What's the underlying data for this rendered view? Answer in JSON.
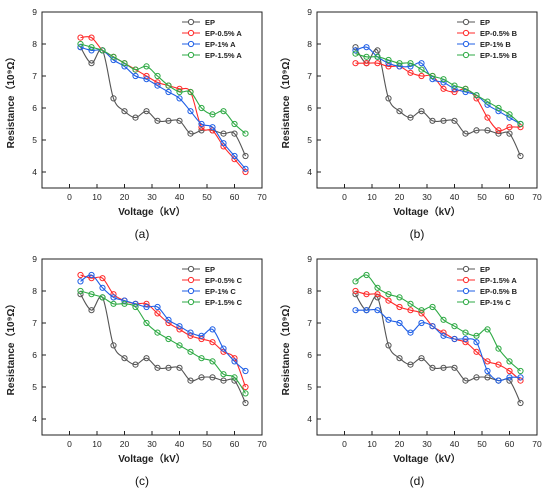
{
  "chart_data": [
    {
      "type": "line",
      "panel_label": "(a)",
      "xlabel": "Voltage（kV）",
      "ylabel": "Resistance（10⁹Ω）",
      "xlim": [
        -10,
        70
      ],
      "ylim": [
        3.5,
        9
      ],
      "xticks": [
        "0",
        "10",
        "20",
        "30",
        "40",
        "50",
        "60",
        "70"
      ],
      "yticks": [
        "4",
        "5",
        "6",
        "7",
        "8",
        "9"
      ],
      "legend_position": "top-right",
      "series": [
        {
          "name": "EP",
          "color": "#555555",
          "x": [
            4,
            8,
            12,
            16,
            20,
            24,
            28,
            32,
            36,
            40,
            44,
            48,
            52,
            56,
            60,
            64
          ],
          "y": [
            7.9,
            7.4,
            7.8,
            6.3,
            5.9,
            5.7,
            5.9,
            5.6,
            5.6,
            5.6,
            5.2,
            5.3,
            5.3,
            5.2,
            5.2,
            4.5
          ]
        },
        {
          "name": "EP-0.5% A",
          "color": "#ff2a2a",
          "x": [
            4,
            8,
            12,
            16,
            20,
            24,
            28,
            32,
            36,
            40,
            44,
            48,
            52,
            56,
            60,
            64
          ],
          "y": [
            8.2,
            8.2,
            7.8,
            7.6,
            7.4,
            7.2,
            7.0,
            6.8,
            6.7,
            6.6,
            6.5,
            5.4,
            5.3,
            4.8,
            4.4,
            4.0
          ]
        },
        {
          "name": "EP-1%   A",
          "color": "#1f5fe6",
          "x": [
            4,
            8,
            12,
            16,
            20,
            24,
            28,
            32,
            36,
            40,
            44,
            48,
            52,
            56,
            60,
            64
          ],
          "y": [
            7.9,
            7.8,
            7.8,
            7.5,
            7.3,
            7.0,
            6.9,
            6.7,
            6.5,
            6.3,
            5.9,
            5.5,
            5.4,
            4.9,
            4.5,
            4.1
          ]
        },
        {
          "name": "EP-1.5% A",
          "color": "#2eaa44",
          "x": [
            4,
            8,
            12,
            16,
            20,
            24,
            28,
            32,
            36,
            40,
            44,
            48,
            52,
            56,
            60,
            64
          ],
          "y": [
            8.0,
            7.9,
            7.8,
            7.6,
            7.4,
            7.2,
            7.3,
            7.0,
            6.7,
            6.5,
            6.5,
            6.0,
            5.8,
            5.9,
            5.5,
            5.2
          ]
        }
      ]
    },
    {
      "type": "line",
      "panel_label": "(b)",
      "xlabel": "Voltage（kV）",
      "ylabel": "Resistance（10⁹Ω）",
      "xlim": [
        -10,
        70
      ],
      "ylim": [
        3.5,
        9
      ],
      "xticks": [
        "0",
        "10",
        "20",
        "30",
        "40",
        "50",
        "60",
        "70"
      ],
      "yticks": [
        "4",
        "5",
        "6",
        "7",
        "8",
        "9"
      ],
      "legend_position": "top-right",
      "series": [
        {
          "name": "EP",
          "color": "#555555",
          "x": [
            4,
            8,
            12,
            16,
            20,
            24,
            28,
            32,
            36,
            40,
            44,
            48,
            52,
            56,
            60,
            64
          ],
          "y": [
            7.9,
            7.4,
            7.8,
            6.3,
            5.9,
            5.7,
            5.9,
            5.6,
            5.6,
            5.6,
            5.2,
            5.3,
            5.3,
            5.2,
            5.2,
            4.5
          ]
        },
        {
          "name": "EP-0.5% B",
          "color": "#ff2a2a",
          "x": [
            4,
            8,
            12,
            16,
            20,
            24,
            28,
            32,
            36,
            40,
            44,
            48,
            52,
            56,
            60,
            64
          ],
          "y": [
            7.4,
            7.4,
            7.4,
            7.3,
            7.3,
            7.1,
            7.0,
            7.0,
            6.6,
            6.5,
            6.6,
            6.3,
            5.7,
            5.3,
            5.4,
            5.4
          ]
        },
        {
          "name": "EP-1%   B",
          "color": "#1f5fe6",
          "x": [
            4,
            8,
            12,
            16,
            20,
            24,
            28,
            32,
            36,
            40,
            44,
            48,
            52,
            56,
            60,
            64
          ],
          "y": [
            7.8,
            7.9,
            7.6,
            7.4,
            7.3,
            7.3,
            7.4,
            6.9,
            6.8,
            6.6,
            6.5,
            6.4,
            6.1,
            5.9,
            5.7,
            5.5
          ]
        },
        {
          "name": "EP-1.5% B",
          "color": "#2eaa44",
          "x": [
            4,
            8,
            12,
            16,
            20,
            24,
            28,
            32,
            36,
            40,
            44,
            48,
            52,
            56,
            60,
            64
          ],
          "y": [
            7.7,
            7.6,
            7.6,
            7.5,
            7.4,
            7.4,
            7.2,
            7.0,
            6.9,
            6.7,
            6.6,
            6.4,
            6.2,
            6.0,
            5.8,
            5.5
          ]
        }
      ]
    },
    {
      "type": "line",
      "panel_label": "(c)",
      "xlabel": "Voltage（kV）",
      "ylabel": "Resistance（10⁹Ω）",
      "xlim": [
        -10,
        70
      ],
      "ylim": [
        3.5,
        9
      ],
      "xticks": [
        "0",
        "10",
        "20",
        "30",
        "40",
        "50",
        "60",
        "70"
      ],
      "yticks": [
        "4",
        "5",
        "6",
        "7",
        "8",
        "9"
      ],
      "legend_position": "top-right",
      "series": [
        {
          "name": "EP",
          "color": "#555555",
          "x": [
            4,
            8,
            12,
            16,
            20,
            24,
            28,
            32,
            36,
            40,
            44,
            48,
            52,
            56,
            60,
            64
          ],
          "y": [
            7.9,
            7.4,
            7.8,
            6.3,
            5.9,
            5.7,
            5.9,
            5.6,
            5.6,
            5.6,
            5.2,
            5.3,
            5.3,
            5.2,
            5.2,
            4.5
          ]
        },
        {
          "name": "EP-0.5% C",
          "color": "#ff2a2a",
          "x": [
            4,
            8,
            12,
            16,
            20,
            24,
            28,
            32,
            36,
            40,
            44,
            48,
            52,
            56,
            60,
            64
          ],
          "y": [
            8.5,
            8.4,
            8.4,
            7.9,
            7.7,
            7.6,
            7.6,
            7.3,
            7.0,
            6.8,
            6.6,
            6.5,
            6.4,
            6.1,
            5.9,
            5.0
          ]
        },
        {
          "name": "EP-1%   C",
          "color": "#1f5fe6",
          "x": [
            4,
            8,
            12,
            16,
            20,
            24,
            28,
            32,
            36,
            40,
            44,
            48,
            52,
            56,
            60,
            64
          ],
          "y": [
            8.3,
            8.5,
            8.1,
            7.8,
            7.7,
            7.6,
            7.5,
            7.5,
            7.1,
            6.9,
            6.7,
            6.6,
            6.8,
            6.2,
            5.8,
            5.5
          ]
        },
        {
          "name": "EP-1.5% C",
          "color": "#2eaa44",
          "x": [
            4,
            8,
            12,
            16,
            20,
            24,
            28,
            32,
            36,
            40,
            44,
            48,
            52,
            56,
            60,
            64
          ],
          "y": [
            8.0,
            7.9,
            7.8,
            7.6,
            7.6,
            7.5,
            7.0,
            6.7,
            6.5,
            6.3,
            6.1,
            5.9,
            5.8,
            5.4,
            5.3,
            4.8
          ]
        }
      ]
    },
    {
      "type": "line",
      "panel_label": "(d)",
      "xlabel": "Voltage（kV）",
      "ylabel": "Resistance（10⁹Ω）",
      "xlim": [
        -10,
        70
      ],
      "ylim": [
        3.5,
        9
      ],
      "xticks": [
        "0",
        "10",
        "20",
        "30",
        "40",
        "50",
        "60",
        "70"
      ],
      "yticks": [
        "4",
        "5",
        "6",
        "7",
        "8",
        "9"
      ],
      "legend_position": "top-right",
      "series": [
        {
          "name": "EP",
          "color": "#555555",
          "x": [
            4,
            8,
            12,
            16,
            20,
            24,
            28,
            32,
            36,
            40,
            44,
            48,
            52,
            56,
            60,
            64
          ],
          "y": [
            7.9,
            7.4,
            7.8,
            6.3,
            5.9,
            5.7,
            5.9,
            5.6,
            5.6,
            5.6,
            5.2,
            5.3,
            5.3,
            5.2,
            5.2,
            4.5
          ]
        },
        {
          "name": "EP-1.5% A",
          "color": "#ff2a2a",
          "x": [
            4,
            8,
            12,
            16,
            20,
            24,
            28,
            32,
            36,
            40,
            44,
            48,
            52,
            56,
            60,
            64
          ],
          "y": [
            8.0,
            7.9,
            7.9,
            7.7,
            7.5,
            7.4,
            7.3,
            6.9,
            6.7,
            6.5,
            6.4,
            6.1,
            5.8,
            5.7,
            5.5,
            5.2
          ]
        },
        {
          "name": "EP-0.5% B",
          "color": "#1f5fe6",
          "x": [
            4,
            8,
            12,
            16,
            20,
            24,
            28,
            32,
            36,
            40,
            44,
            48,
            52,
            56,
            60,
            64
          ],
          "y": [
            7.4,
            7.4,
            7.4,
            7.1,
            7.0,
            6.7,
            7.0,
            6.9,
            6.6,
            6.5,
            6.5,
            6.4,
            5.5,
            5.2,
            5.3,
            5.3
          ]
        },
        {
          "name": "EP-1%   C",
          "color": "#2eaa44",
          "x": [
            4,
            8,
            12,
            16,
            20,
            24,
            28,
            32,
            36,
            40,
            44,
            48,
            52,
            56,
            60,
            64
          ],
          "y": [
            8.3,
            8.5,
            8.1,
            7.9,
            7.8,
            7.6,
            7.4,
            7.5,
            7.1,
            6.9,
            6.7,
            6.6,
            6.8,
            6.2,
            5.8,
            5.5
          ]
        }
      ]
    }
  ]
}
